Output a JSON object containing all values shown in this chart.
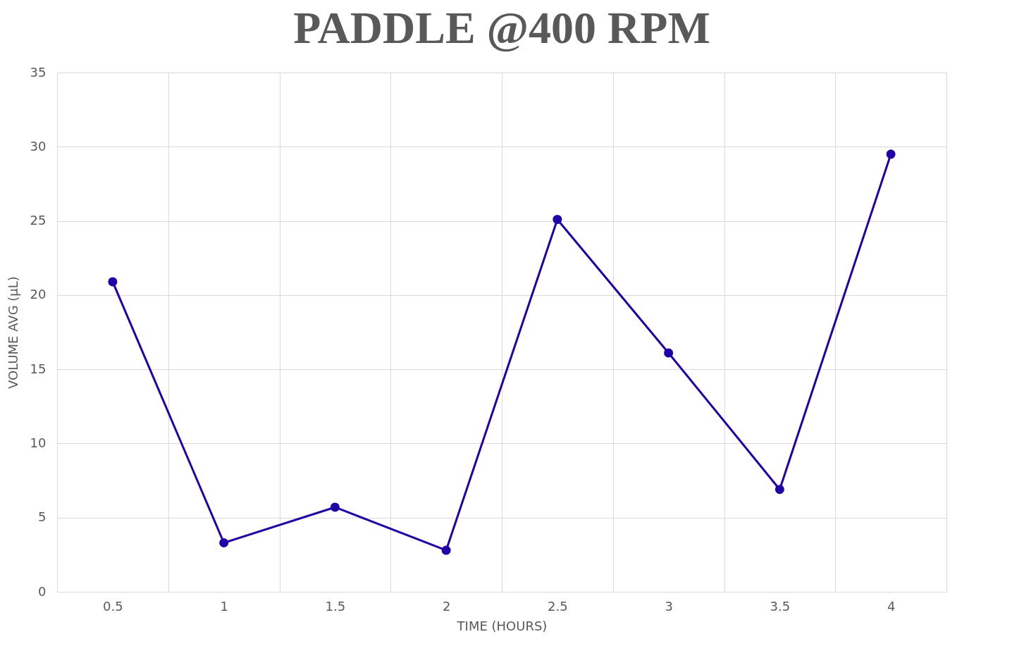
{
  "chart_data": {
    "type": "line",
    "title": "PADDLE @400 RPM",
    "xlabel": "TIME (HOURS)",
    "ylabel": "VOLUME AVG (µL)",
    "categories": [
      "0.5",
      "1",
      "1.5",
      "2",
      "2.5",
      "3",
      "3.5",
      "4"
    ],
    "series": [
      {
        "color": "#2200a8",
        "values": [
          20.9,
          3.3,
          5.7,
          2.8,
          25.1,
          16.1,
          6.9,
          29.5
        ]
      }
    ],
    "ylim": [
      0,
      35
    ],
    "yticks": [
      0,
      5,
      10,
      15,
      20,
      25,
      30,
      35
    ],
    "grid": true,
    "marker": "circle",
    "line_style": "solid"
  }
}
